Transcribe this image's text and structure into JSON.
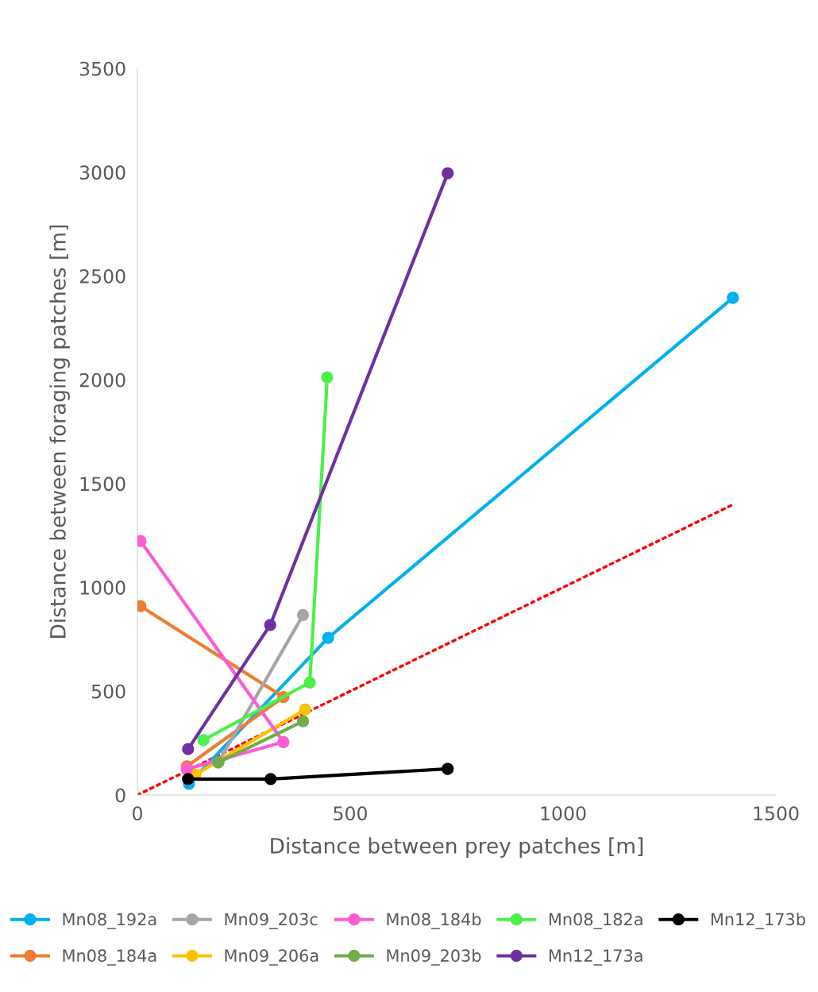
{
  "chart_data": {
    "type": "line",
    "xlabel": "Distance between prey patches [m]",
    "ylabel": "Distance between foraging patches [m]",
    "xlim": [
      0,
      1500
    ],
    "xticks": [
      0,
      500,
      1000,
      1500
    ],
    "ylim": [
      0,
      3500
    ],
    "yticks": [
      0,
      500,
      1000,
      1500,
      2000,
      2500,
      3000,
      3500
    ],
    "grid": false,
    "legend": "bottom",
    "marker": "circle",
    "line_style": "solid",
    "series": [
      {
        "name": "Mn08_192a",
        "color": "#00b0f0",
        "x": [
          121,
          448,
          1399
        ],
        "values": [
          54,
          757,
          2395
        ]
      },
      {
        "name": "Mn08_184a",
        "color": "#ed7d31",
        "x": [
          7,
          343,
          116
        ],
        "values": [
          910,
          472,
          138
        ]
      },
      {
        "name": "Mn09_203c",
        "color": "#a5a5a5",
        "x": [
          389,
          190
        ],
        "values": [
          867,
          157
        ]
      },
      {
        "name": "Mn09_206a",
        "color": "#ffc000",
        "x": [
          394,
          136
        ],
        "values": [
          412,
          98
        ]
      },
      {
        "name": "Mn08_184b",
        "color": "#ff5bd7",
        "x": [
          7,
          343,
          116
        ],
        "values": [
          1224,
          255,
          125
        ]
      },
      {
        "name": "Mn09_203b",
        "color": "#70ad47",
        "x": [
          389,
          190
        ],
        "values": [
          355,
          157
        ]
      },
      {
        "name": "Mn08_182a",
        "color": "#4cf04c",
        "x": [
          155,
          405,
          446
        ],
        "values": [
          264,
          542,
          2012
        ]
      },
      {
        "name": "Mn12_173a",
        "color": "#7030a0",
        "x": [
          119,
          312,
          729
        ],
        "values": [
          221,
          819,
          2995
        ]
      },
      {
        "name": "Mn12_173b",
        "color": "#000000",
        "x": [
          119,
          313,
          729
        ],
        "values": [
          77,
          77,
          126
        ]
      },
      {
        "color": "#ff0000",
        "x": [
          0,
          1400
        ],
        "values": [
          0,
          1400
        ],
        "line_style": "dotted",
        "marker": "none"
      }
    ]
  }
}
